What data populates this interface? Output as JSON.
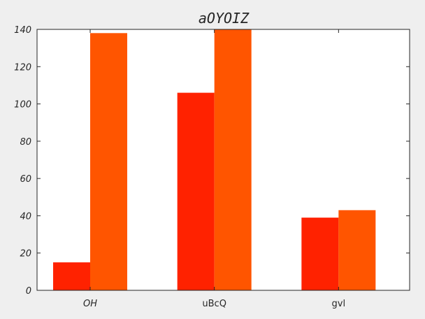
{
  "chart_data": {
    "type": "bar",
    "title": "aOYOIZ",
    "xlabel": "",
    "ylabel": "",
    "categories": [
      "OH",
      "uBcQ",
      "gvl"
    ],
    "ylim": [
      0,
      140
    ],
    "yticks": [
      0,
      20,
      40,
      60,
      80,
      100,
      120,
      140
    ],
    "grid": false,
    "series": [
      {
        "color": "#ff2200",
        "values": [
          15,
          106,
          39
        ]
      },
      {
        "color": "#ff5500",
        "values": [
          138,
          140,
          43
        ]
      }
    ]
  }
}
